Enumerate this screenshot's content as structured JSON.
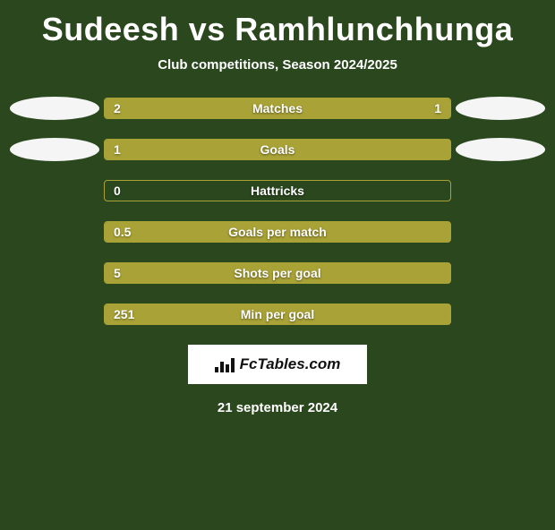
{
  "title": "Sudeesh vs Ramhlunchhunga",
  "subtitle": "Club competitions, Season 2024/2025",
  "footer_brand": "FcTables.com",
  "date": "21 september 2024",
  "colors": {
    "background": "#2a471e",
    "bar_fill": "#a9a237",
    "bar_border": "#a9a237",
    "text": "#ffffff",
    "badge_bg": "#ffffff",
    "badge_text": "#111111",
    "logo_ellipse": "#f5f5f5"
  },
  "stats": [
    {
      "label": "Matches",
      "left_value": "2",
      "right_value": "1",
      "left_pct": 67,
      "right_pct": 33,
      "show_right_value": true,
      "show_left_logo": true,
      "show_right_logo": true
    },
    {
      "label": "Goals",
      "left_value": "1",
      "right_value": "",
      "left_pct": 100,
      "right_pct": 0,
      "show_right_value": false,
      "show_left_logo": true,
      "show_right_logo": true
    },
    {
      "label": "Hattricks",
      "left_value": "0",
      "right_value": "",
      "left_pct": 0,
      "right_pct": 0,
      "show_right_value": false,
      "show_left_logo": false,
      "show_right_logo": false
    },
    {
      "label": "Goals per match",
      "left_value": "0.5",
      "right_value": "",
      "left_pct": 100,
      "right_pct": 0,
      "show_right_value": false,
      "show_left_logo": false,
      "show_right_logo": false
    },
    {
      "label": "Shots per goal",
      "left_value": "5",
      "right_value": "",
      "left_pct": 100,
      "right_pct": 0,
      "show_right_value": false,
      "show_left_logo": false,
      "show_right_logo": false
    },
    {
      "label": "Min per goal",
      "left_value": "251",
      "right_value": "",
      "left_pct": 100,
      "right_pct": 0,
      "show_right_value": false,
      "show_left_logo": false,
      "show_right_logo": false
    }
  ]
}
